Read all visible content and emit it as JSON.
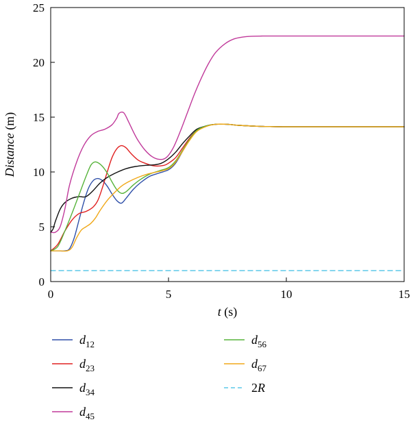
{
  "chart_data": {
    "type": "line",
    "xlabel": "t (s)",
    "ylabel": "Distance (m)",
    "xlim": [
      0,
      15
    ],
    "ylim": [
      0,
      25
    ],
    "xticks": [
      0,
      5,
      10,
      15
    ],
    "yticks": [
      0,
      5,
      10,
      15,
      20,
      25
    ],
    "grid": false,
    "legend_position": "below",
    "series": [
      {
        "id": "d12",
        "base": "d",
        "sub": "12",
        "color": "#2e4fa8",
        "dash": false,
        "points": [
          [
            0,
            2.8
          ],
          [
            0.3,
            2.8
          ],
          [
            0.6,
            2.8
          ],
          [
            0.8,
            3.0
          ],
          [
            1.0,
            4.0
          ],
          [
            1.2,
            5.6
          ],
          [
            1.4,
            7.2
          ],
          [
            1.6,
            8.5
          ],
          [
            1.8,
            9.2
          ],
          [
            2.0,
            9.4
          ],
          [
            2.2,
            9.2
          ],
          [
            2.4,
            8.7
          ],
          [
            2.6,
            8.0
          ],
          [
            2.8,
            7.4
          ],
          [
            3.0,
            7.15
          ],
          [
            3.2,
            7.6
          ],
          [
            3.5,
            8.4
          ],
          [
            3.8,
            9.0
          ],
          [
            4.2,
            9.6
          ],
          [
            4.6,
            9.9
          ],
          [
            5.0,
            10.2
          ],
          [
            5.3,
            10.8
          ],
          [
            5.6,
            11.9
          ],
          [
            5.9,
            13.0
          ],
          [
            6.2,
            13.8
          ],
          [
            6.6,
            14.2
          ],
          [
            7.0,
            14.35
          ],
          [
            7.5,
            14.35
          ],
          [
            8.0,
            14.25
          ],
          [
            9.0,
            14.15
          ],
          [
            10.0,
            14.12
          ],
          [
            12.0,
            14.12
          ],
          [
            15.0,
            14.12
          ]
        ]
      },
      {
        "id": "d23",
        "base": "d",
        "sub": "23",
        "color": "#e02020",
        "dash": false,
        "points": [
          [
            0,
            2.8
          ],
          [
            0.3,
            3.4
          ],
          [
            0.6,
            4.6
          ],
          [
            0.9,
            5.6
          ],
          [
            1.2,
            6.2
          ],
          [
            1.5,
            6.4
          ],
          [
            1.8,
            6.8
          ],
          [
            2.0,
            7.4
          ],
          [
            2.2,
            8.6
          ],
          [
            2.4,
            10.0
          ],
          [
            2.6,
            11.3
          ],
          [
            2.8,
            12.1
          ],
          [
            3.0,
            12.4
          ],
          [
            3.2,
            12.2
          ],
          [
            3.4,
            11.7
          ],
          [
            3.7,
            11.1
          ],
          [
            4.0,
            10.8
          ],
          [
            4.4,
            10.55
          ],
          [
            4.8,
            10.6
          ],
          [
            5.0,
            10.8
          ],
          [
            5.3,
            11.3
          ],
          [
            5.6,
            12.2
          ],
          [
            5.9,
            13.1
          ],
          [
            6.2,
            13.8
          ],
          [
            6.6,
            14.2
          ],
          [
            7.0,
            14.35
          ],
          [
            7.5,
            14.35
          ],
          [
            8.0,
            14.25
          ],
          [
            9.0,
            14.15
          ],
          [
            10.0,
            14.12
          ],
          [
            12.0,
            14.12
          ],
          [
            15.0,
            14.12
          ]
        ]
      },
      {
        "id": "d34",
        "base": "d",
        "sub": "34",
        "color": "#111111",
        "dash": false,
        "points": [
          [
            0,
            4.5
          ],
          [
            0.1,
            4.8
          ],
          [
            0.2,
            5.5
          ],
          [
            0.4,
            6.6
          ],
          [
            0.6,
            7.2
          ],
          [
            0.9,
            7.6
          ],
          [
            1.2,
            7.75
          ],
          [
            1.5,
            7.75
          ],
          [
            1.8,
            8.3
          ],
          [
            2.1,
            9.0
          ],
          [
            2.4,
            9.5
          ],
          [
            2.8,
            9.95
          ],
          [
            3.2,
            10.3
          ],
          [
            3.6,
            10.5
          ],
          [
            4.0,
            10.6
          ],
          [
            4.4,
            10.65
          ],
          [
            4.7,
            10.8
          ],
          [
            5.0,
            11.2
          ],
          [
            5.3,
            11.8
          ],
          [
            5.6,
            12.6
          ],
          [
            5.9,
            13.3
          ],
          [
            6.2,
            13.9
          ],
          [
            6.6,
            14.2
          ],
          [
            7.0,
            14.35
          ],
          [
            7.5,
            14.35
          ],
          [
            8.0,
            14.25
          ],
          [
            9.0,
            14.15
          ],
          [
            10.0,
            14.12
          ],
          [
            12.0,
            14.12
          ],
          [
            15.0,
            14.12
          ]
        ]
      },
      {
        "id": "d45",
        "base": "d",
        "sub": "45",
        "color": "#c0399a",
        "dash": false,
        "points": [
          [
            0,
            4.5
          ],
          [
            0.2,
            4.5
          ],
          [
            0.4,
            5.0
          ],
          [
            0.6,
            6.6
          ],
          [
            0.8,
            8.8
          ],
          [
            1.1,
            10.9
          ],
          [
            1.4,
            12.4
          ],
          [
            1.7,
            13.3
          ],
          [
            2.0,
            13.7
          ],
          [
            2.3,
            13.9
          ],
          [
            2.6,
            14.3
          ],
          [
            2.8,
            14.9
          ],
          [
            2.9,
            15.35
          ],
          [
            3.1,
            15.4
          ],
          [
            3.3,
            14.6
          ],
          [
            3.5,
            13.7
          ],
          [
            3.7,
            12.9
          ],
          [
            4.0,
            12.0
          ],
          [
            4.3,
            11.4
          ],
          [
            4.6,
            11.15
          ],
          [
            4.9,
            11.3
          ],
          [
            5.2,
            12.2
          ],
          [
            5.5,
            13.7
          ],
          [
            5.8,
            15.4
          ],
          [
            6.1,
            17.1
          ],
          [
            6.4,
            18.6
          ],
          [
            6.7,
            19.9
          ],
          [
            7.0,
            20.9
          ],
          [
            7.4,
            21.7
          ],
          [
            7.8,
            22.15
          ],
          [
            8.3,
            22.35
          ],
          [
            9.0,
            22.4
          ],
          [
            10.0,
            22.4
          ],
          [
            12.0,
            22.4
          ],
          [
            15.0,
            22.4
          ]
        ]
      },
      {
        "id": "d56",
        "base": "d",
        "sub": "56",
        "color": "#56b33a",
        "dash": false,
        "points": [
          [
            0,
            2.8
          ],
          [
            0.3,
            3.2
          ],
          [
            0.6,
            4.6
          ],
          [
            0.9,
            6.2
          ],
          [
            1.2,
            7.9
          ],
          [
            1.5,
            9.6
          ],
          [
            1.7,
            10.6
          ],
          [
            1.85,
            10.9
          ],
          [
            2.0,
            10.85
          ],
          [
            2.2,
            10.5
          ],
          [
            2.4,
            9.9
          ],
          [
            2.6,
            9.1
          ],
          [
            2.8,
            8.4
          ],
          [
            3.0,
            8.05
          ],
          [
            3.2,
            8.2
          ],
          [
            3.5,
            8.8
          ],
          [
            3.8,
            9.3
          ],
          [
            4.2,
            9.8
          ],
          [
            4.6,
            10.1
          ],
          [
            5.0,
            10.4
          ],
          [
            5.3,
            11.0
          ],
          [
            5.6,
            12.0
          ],
          [
            5.9,
            13.0
          ],
          [
            6.2,
            13.8
          ],
          [
            6.6,
            14.2
          ],
          [
            7.0,
            14.35
          ],
          [
            7.5,
            14.35
          ],
          [
            8.0,
            14.25
          ],
          [
            9.0,
            14.15
          ],
          [
            10.0,
            14.12
          ],
          [
            12.0,
            14.12
          ],
          [
            15.0,
            14.12
          ]
        ]
      },
      {
        "id": "d67",
        "base": "d",
        "sub": "67",
        "color": "#f0a818",
        "dash": false,
        "points": [
          [
            0,
            2.8
          ],
          [
            0.4,
            2.8
          ],
          [
            0.7,
            2.8
          ],
          [
            0.9,
            3.1
          ],
          [
            1.1,
            4.0
          ],
          [
            1.3,
            4.7
          ],
          [
            1.5,
            5.0
          ],
          [
            1.7,
            5.3
          ],
          [
            1.9,
            5.8
          ],
          [
            2.1,
            6.5
          ],
          [
            2.4,
            7.4
          ],
          [
            2.7,
            8.1
          ],
          [
            3.0,
            8.7
          ],
          [
            3.3,
            9.1
          ],
          [
            3.7,
            9.5
          ],
          [
            4.1,
            9.8
          ],
          [
            4.5,
            10.0
          ],
          [
            5.0,
            10.3
          ],
          [
            5.3,
            10.9
          ],
          [
            5.6,
            11.9
          ],
          [
            5.9,
            12.9
          ],
          [
            6.2,
            13.7
          ],
          [
            6.6,
            14.15
          ],
          [
            7.0,
            14.35
          ],
          [
            7.5,
            14.35
          ],
          [
            8.0,
            14.25
          ],
          [
            9.0,
            14.15
          ],
          [
            10.0,
            14.12
          ],
          [
            12.0,
            14.12
          ],
          [
            15.0,
            14.12
          ]
        ]
      },
      {
        "id": "2R",
        "base": "2R",
        "sub": "",
        "color": "#5bc8e8",
        "dash": true,
        "points": [
          [
            0,
            1.0
          ],
          [
            15,
            1.0
          ]
        ]
      }
    ]
  }
}
